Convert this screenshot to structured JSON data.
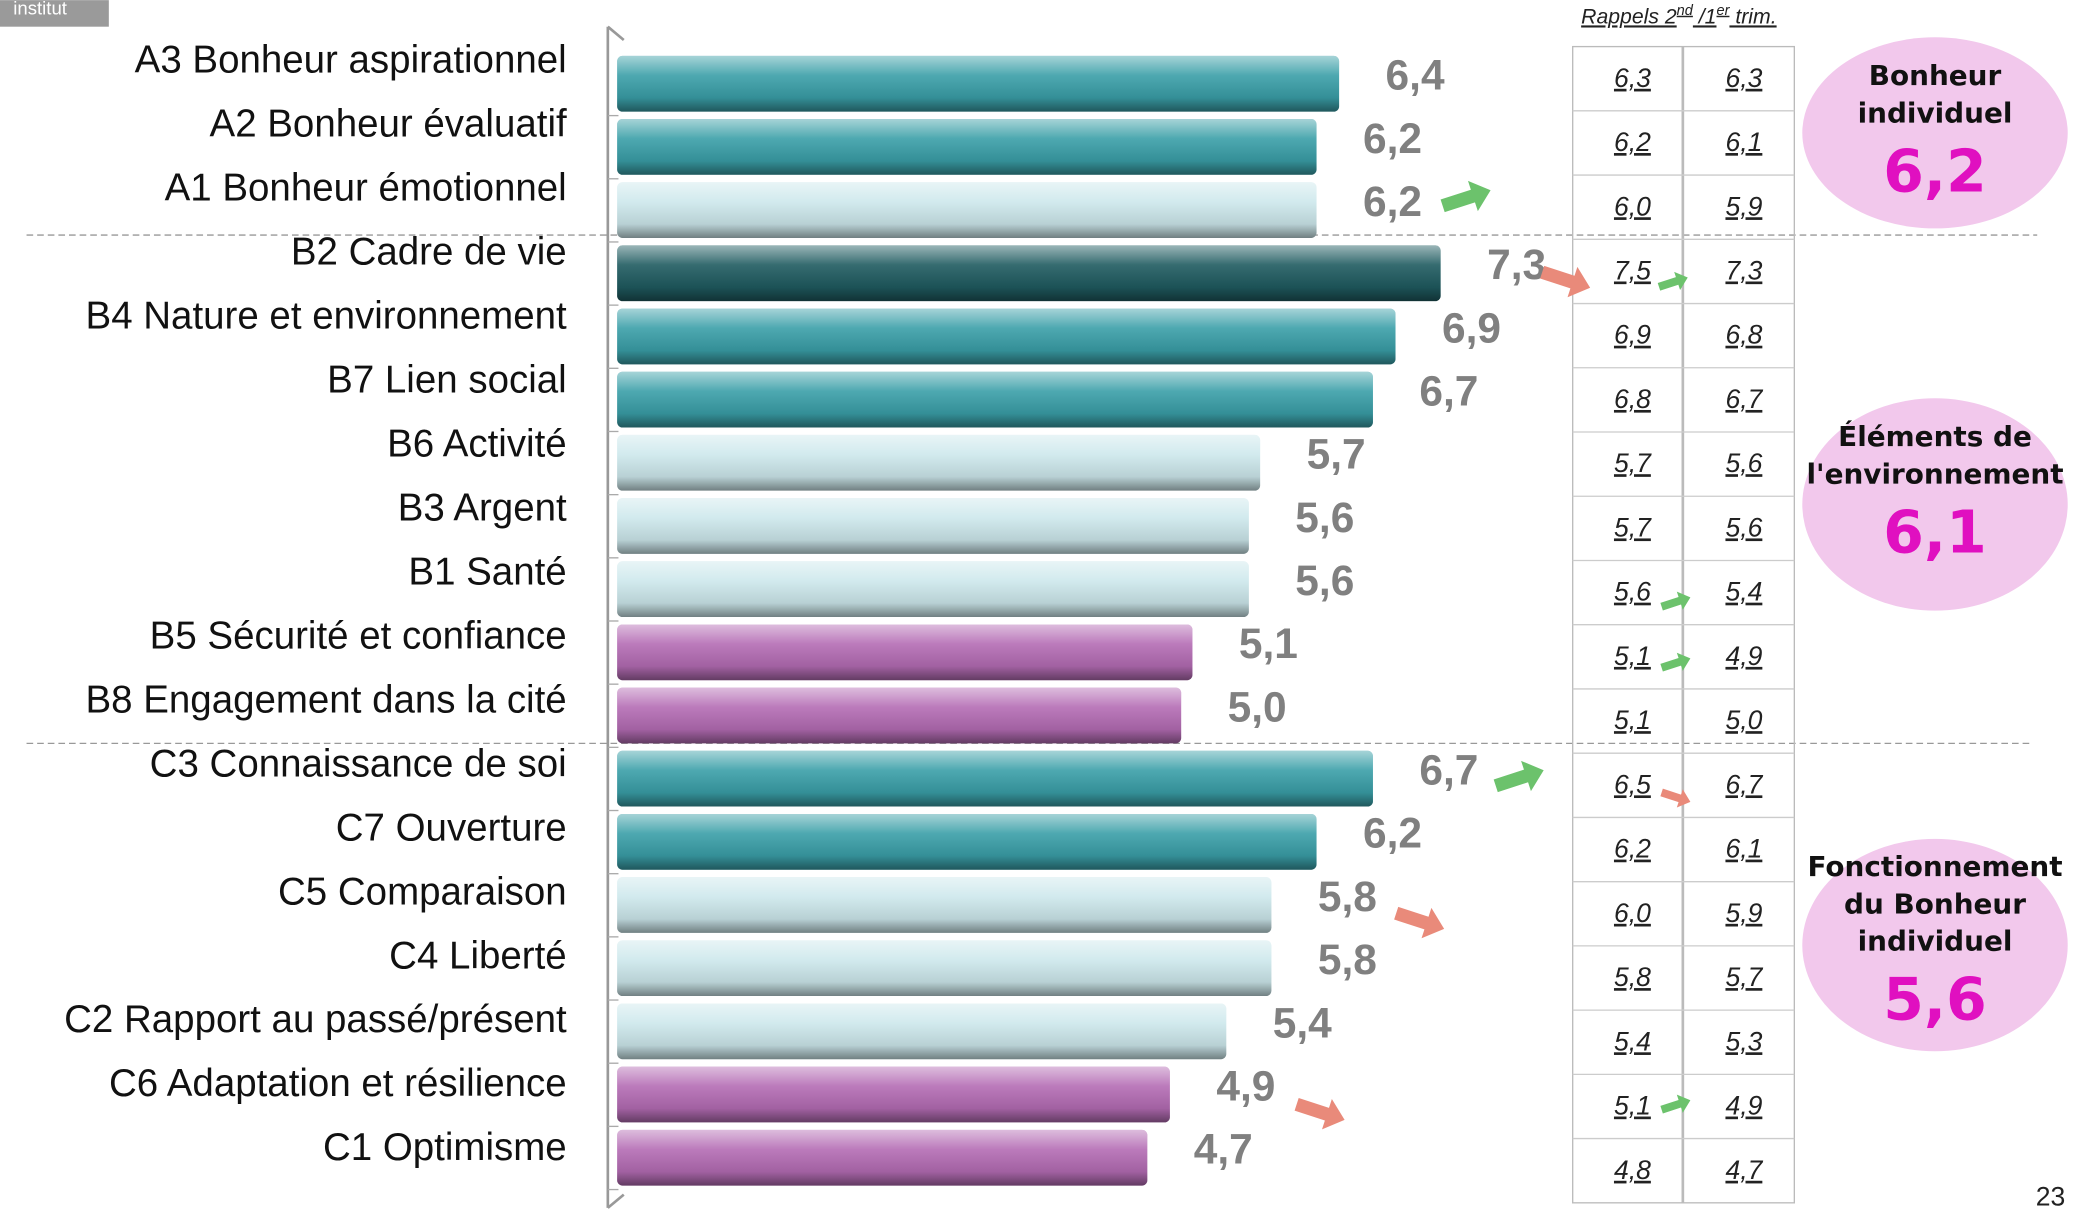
{
  "chart_data": {
    "type": "bar",
    "orientation": "horizontal",
    "categories": [
      "A3 Bonheur aspirationnel",
      "A2 Bonheur évaluatif",
      "A1 Bonheur émotionnel",
      "B2 Cadre de vie",
      "B4 Nature et environnement",
      "B7 Lien social",
      "B6 Activité",
      "B3 Argent",
      "B1 Santé",
      "B5 Sécurité et confiance",
      "B8 Engagement dans la cité",
      "C3 Connaissance de soi",
      "C7 Ouverture",
      "C5 Comparaison",
      "C4 Liberté",
      "C2 Rapport au passé/présent",
      "C6 Adaptation et résilience",
      "C1 Optimisme"
    ],
    "values": [
      6.4,
      6.2,
      6.2,
      7.3,
      6.9,
      6.7,
      5.7,
      5.6,
      5.6,
      5.1,
      5.0,
      6.7,
      6.2,
      5.8,
      5.8,
      5.4,
      4.9,
      4.7
    ],
    "value_labels": [
      "6,4",
      "6,2",
      "6,2",
      "7,3",
      "6,9",
      "6,7",
      "5,7",
      "5,6",
      "5,6",
      "5,1",
      "5,0",
      "6,7",
      "6,2",
      "5,8",
      "5,8",
      "5,4",
      "4,9",
      "4,7"
    ],
    "colors": [
      "#3a9fa8",
      "#3a9fa8",
      "#cde8ec",
      "#1f5b60",
      "#3a9fa8",
      "#3a9fa8",
      "#cde8ec",
      "#cde8ec",
      "#cde8ec",
      "#b46cb4",
      "#b46cb4",
      "#3a9fa8",
      "#3a9fa8",
      "#cde8ec",
      "#cde8ec",
      "#cde8ec",
      "#b46cb4",
      "#b46cb4"
    ],
    "xlim": [
      0,
      8
    ]
  },
  "logo": "institut",
  "table": {
    "header": [
      "Rappels 2",
      "nd",
      " /1",
      "er",
      " trim."
    ],
    "rows": [
      [
        "6,3",
        "6,3"
      ],
      [
        "6,2",
        "6,1"
      ],
      [
        "6,0",
        "5,9"
      ],
      [
        "7,5",
        "7,3"
      ],
      [
        "6,9",
        "6,8"
      ],
      [
        "6,8",
        "6,7"
      ],
      [
        "5,7",
        "5,6"
      ],
      [
        "5,7",
        "5,6"
      ],
      [
        "5,6",
        "5,4"
      ],
      [
        "5,1",
        "4,9"
      ],
      [
        "5,1",
        "5,0"
      ],
      [
        "6,5",
        "6,7"
      ],
      [
        "6,2",
        "6,1"
      ],
      [
        "6,0",
        "5,9"
      ],
      [
        "5,8",
        "5,7"
      ],
      [
        "5,4",
        "5,3"
      ],
      [
        "5,1",
        "4,9"
      ],
      [
        "4,8",
        "4,7"
      ]
    ]
  },
  "groups": [
    {
      "lines": [
        "Bonheur",
        "individuel"
      ],
      "value": "6,2"
    },
    {
      "lines": [
        "Éléments de",
        "l'environnement"
      ],
      "value": "6,1"
    },
    {
      "lines": [
        "Fonctionnement",
        "du Bonheur",
        "individuel"
      ],
      "value": "5,6"
    }
  ],
  "page_number": "23"
}
